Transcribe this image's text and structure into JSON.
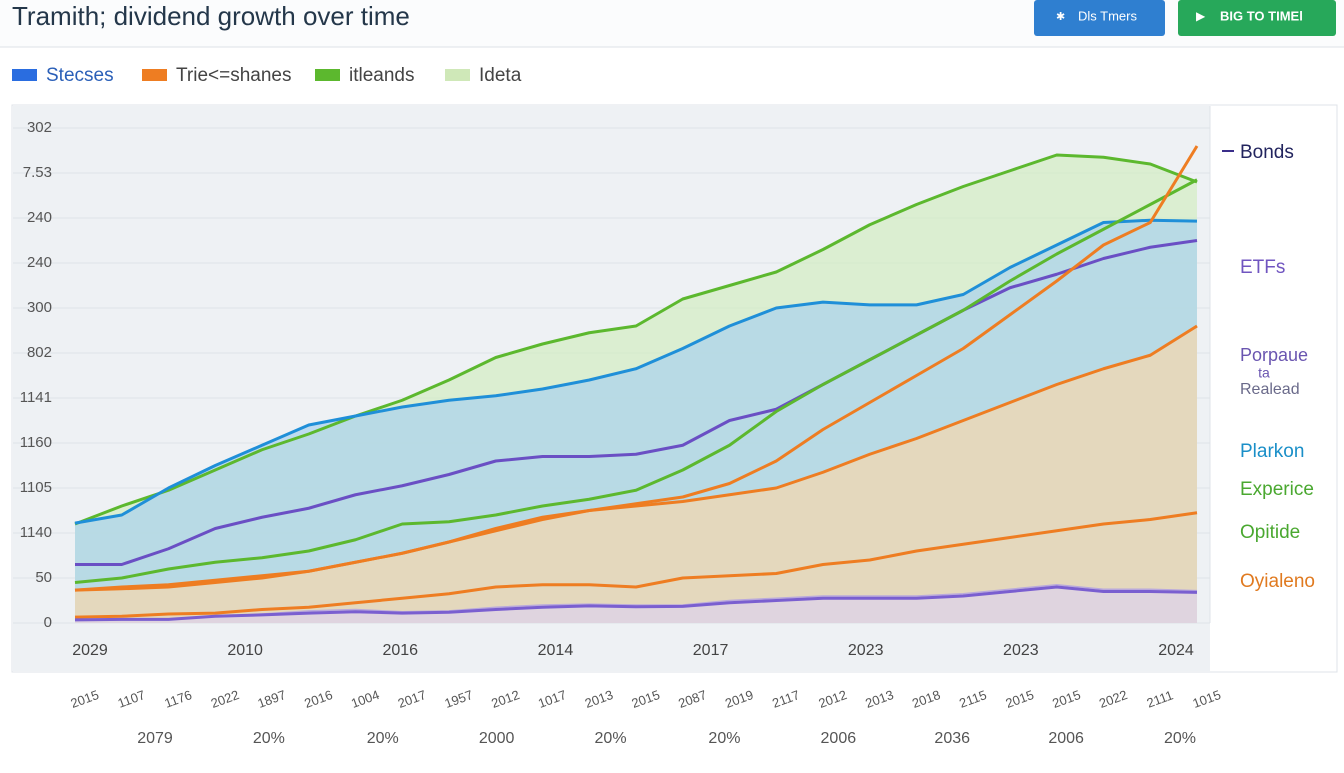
{
  "header": {
    "title": "Tramith; dividend growth over time",
    "buttons": [
      "Dls Tmers",
      "BIG TO TIMEl"
    ]
  },
  "chart_data": {
    "type": "area-line",
    "legend": [
      {
        "name": "Stecses",
        "color": "#2a6de0"
      },
      {
        "name": "Trie<=shanes",
        "color": "#ee7d22"
      },
      {
        "name": "itleands",
        "color": "#5cb82e"
      },
      {
        "name": "Ideta",
        "color": "#cfe8b8"
      }
    ],
    "categories": [
      "2015",
      "1107",
      "1176",
      "2022",
      "1897",
      "2016",
      "1004",
      "2017",
      "1957",
      "2012",
      "1017",
      "2013",
      "2015",
      "2087",
      "2019",
      "2117",
      "2012",
      "2013",
      "2018",
      "2115",
      "2015",
      "2015",
      "2022",
      "2111",
      "1015"
    ],
    "x_labels_top": [
      "2029",
      "2010",
      "2016",
      "2014",
      "2017",
      "2023",
      "2023",
      "2024"
    ],
    "x_labels_bottom": [
      "2079",
      "20%",
      "20%",
      "2000",
      "20%",
      "20%",
      "2006",
      "2036",
      "2006",
      "20%"
    ],
    "ylim": [
      0,
      11
    ],
    "yticks": [
      0,
      {
        "value": 1,
        "label": "50"
      },
      {
        "value": 2,
        "label": "1140"
      },
      {
        "value": 3,
        "label": "1105"
      },
      {
        "value": 4,
        "label": "1160"
      },
      {
        "value": 5,
        "label": "1141"
      },
      {
        "value": 6,
        "label": "802"
      },
      {
        "value": 7,
        "label": "300"
      },
      {
        "value": 8,
        "label": "240"
      },
      {
        "value": 9,
        "label": "240"
      },
      {
        "value": 10,
        "label": "7.53"
      },
      {
        "value": 11,
        "label": "302"
      }
    ],
    "grid": true,
    "series": [
      {
        "color": "#5cb82e",
        "fill": "#d3ecc2",
        "values": [
          2.2,
          2.6,
          2.95,
          3.4,
          3.85,
          4.2,
          4.6,
          4.95,
          5.4,
          5.9,
          6.2,
          6.45,
          6.6,
          7.2,
          7.5,
          7.8,
          8.3,
          8.85,
          9.3,
          9.7,
          10.05,
          10.4,
          10.35,
          10.2,
          9.8
        ]
      },
      {
        "color": "#1f8fd8",
        "fill": "#a9d2ee",
        "values": [
          2.22,
          2.4,
          3.0,
          3.5,
          3.95,
          4.4,
          4.6,
          4.8,
          4.95,
          5.05,
          5.2,
          5.4,
          5.65,
          6.1,
          6.6,
          7.0,
          7.13,
          7.07,
          7.07,
          7.3,
          7.9,
          8.4,
          8.9,
          8.95,
          8.93
        ]
      },
      {
        "color": "#ee7d22",
        "fill": "#f6d7ad",
        "values": [
          0.73,
          0.8,
          0.85,
          0.95,
          1.05,
          1.15,
          1.35,
          1.55,
          1.8,
          2.1,
          2.35,
          2.5,
          2.6,
          2.7,
          2.85,
          3.0,
          3.35,
          3.75,
          4.1,
          4.5,
          4.9,
          5.3,
          5.65,
          5.95,
          6.6
        ]
      },
      {
        "color": "#b9a9dc",
        "fill": "#ddd3ee",
        "values": [
          0.07,
          0.07,
          0.07,
          0.15,
          0.2,
          0.27,
          0.3,
          0.25,
          0.27,
          0.35,
          0.4,
          0.42,
          0.4,
          0.4,
          0.5,
          0.55,
          0.6,
          0.6,
          0.6,
          0.65,
          0.75,
          0.85,
          0.75,
          0.75,
          0.72
        ]
      },
      {
        "color": "#6a4fc4",
        "values": [
          1.3,
          1.3,
          1.65,
          2.1,
          2.35,
          2.55,
          2.85,
          3.05,
          3.3,
          3.6,
          3.7,
          3.7,
          3.75,
          3.95,
          4.5,
          4.75,
          5.3,
          5.85,
          6.4,
          6.95,
          7.45,
          7.75,
          8.1,
          8.35,
          8.5
        ]
      },
      {
        "name": "itleands",
        "color": "#5cb82e",
        "values": [
          0.9,
          1.0,
          1.2,
          1.35,
          1.45,
          1.6,
          1.85,
          2.2,
          2.25,
          2.4,
          2.6,
          2.75,
          2.95,
          3.4,
          3.95,
          4.7,
          5.3,
          5.85,
          6.4,
          6.95,
          7.6,
          8.2,
          8.75,
          9.3,
          9.85
        ]
      },
      {
        "name": "Trie<=shanes",
        "color": "#ee7d22",
        "values": [
          0.73,
          0.76,
          0.8,
          0.9,
          1.0,
          1.15,
          1.35,
          1.55,
          1.8,
          2.05,
          2.3,
          2.5,
          2.65,
          2.8,
          3.1,
          3.6,
          4.3,
          4.9,
          5.5,
          6.1,
          6.85,
          7.6,
          8.4,
          8.9,
          10.6
        ]
      },
      {
        "color": "#ee7d22",
        "values": [
          0.13,
          0.15,
          0.2,
          0.22,
          0.3,
          0.35,
          0.45,
          0.55,
          0.65,
          0.8,
          0.85,
          0.85,
          0.8,
          1.0,
          1.05,
          1.1,
          1.3,
          1.4,
          1.6,
          1.75,
          1.9,
          2.05,
          2.2,
          2.3,
          2.45
        ]
      },
      {
        "color": "#7a5fd0",
        "values": [
          0.07,
          0.08,
          0.08,
          0.15,
          0.18,
          0.22,
          0.25,
          0.22,
          0.24,
          0.3,
          0.35,
          0.38,
          0.36,
          0.37,
          0.45,
          0.5,
          0.55,
          0.55,
          0.55,
          0.6,
          0.7,
          0.8,
          0.7,
          0.7,
          0.68
        ]
      }
    ],
    "annotations": [
      {
        "text": "Bonds",
        "color": "#22245e"
      },
      {
        "text": "ETFs",
        "color": "#7055c0"
      },
      {
        "text": "Porpaue",
        "color": "#6a55b0"
      },
      {
        "text": "ta",
        "color": "#6a55b0"
      },
      {
        "text": "Realead",
        "color": "#6a6a8a"
      },
      {
        "text": "Plarkon",
        "color": "#1a8fc8"
      },
      {
        "text": "Experice",
        "color": "#4aa830"
      },
      {
        "text": "Opitide",
        "color": "#4aa830"
      },
      {
        "text": "Oyialeno",
        "color": "#e07a20"
      }
    ]
  }
}
